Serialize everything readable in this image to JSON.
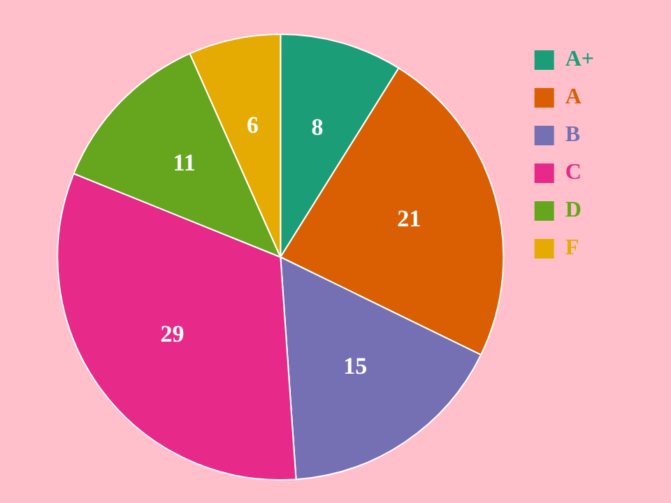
{
  "chart_data": {
    "type": "pie",
    "categories": [
      "A+",
      "A",
      "B",
      "C",
      "D",
      "F"
    ],
    "values": [
      8,
      21,
      15,
      29,
      11,
      6
    ],
    "colors": [
      "#1b9e77",
      "#d95f02",
      "#7570b3",
      "#e7298a",
      "#66a61e",
      "#e6ab02"
    ],
    "data_labels": true,
    "legend": "right"
  }
}
